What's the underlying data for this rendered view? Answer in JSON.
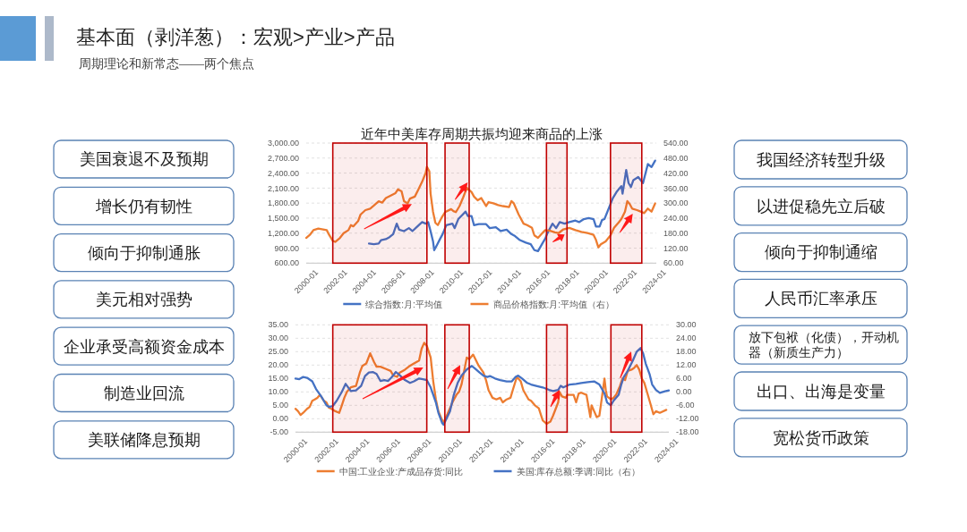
{
  "chart_data": [
    {
      "type": "other",
      "title": "基本面（剥洋葱）：宏观>产业>产品",
      "subtitle": "周期理论和新常态——两个焦点"
    },
    {
      "type": "other",
      "annotations": [
        "美国衰退不及预期",
        "增长仍有韧性",
        "倾向于抑制通胀",
        "美元相对强势",
        "企业承受高额资金成本",
        "制造业回流",
        "美联储降息预期"
      ]
    },
    {
      "type": "line",
      "title": "近年中美库存周期共振均迎来商品的上涨",
      "xlim": [
        "2000-01",
        "2024-03"
      ],
      "xticks": [
        "2000-01",
        "2002-01",
        "2004-01",
        "2006-01",
        "2008-01",
        "2010-01",
        "2012-01",
        "2014-01",
        "2016-01",
        "2018-01",
        "2020-01",
        "2022-01",
        "2024-01"
      ],
      "ylim": [
        600,
        3000
      ],
      "yticks": [
        {
          "value": 600,
          "label": "600.00"
        },
        {
          "value": 900,
          "label": "900.00"
        },
        {
          "value": 1200,
          "label": "1,200.00"
        },
        {
          "value": 1500,
          "label": "1,500.00"
        },
        {
          "value": 1800,
          "label": "1,800.00"
        },
        {
          "value": 2100,
          "label": "2,100.00"
        },
        {
          "value": 2400,
          "label": "2,400.00"
        },
        {
          "value": 2700,
          "label": "2,700.00"
        },
        {
          "value": 3000,
          "label": "3,000.00"
        }
      ],
      "y2lim": [
        60,
        540
      ],
      "y2ticks": [
        {
          "value": 60,
          "label": "60.00"
        },
        {
          "value": 120,
          "label": "120.00"
        },
        {
          "value": 180,
          "label": "180.00"
        },
        {
          "value": 240,
          "label": "240.00"
        },
        {
          "value": 300,
          "label": "300.00"
        },
        {
          "value": 360,
          "label": "360.00"
        },
        {
          "value": 420,
          "label": "420.00"
        },
        {
          "value": 480,
          "label": "480.00"
        },
        {
          "value": 540,
          "label": "540.00"
        }
      ],
      "grid": "y",
      "legend": "bottom",
      "bands": [
        {
          "axis": "x",
          "from": "2001-11",
          "to": "2008-05",
          "color": "#c00000"
        },
        {
          "axis": "x",
          "from": "2009-08",
          "to": "2011-04",
          "color": "#c00000"
        },
        {
          "axis": "x",
          "from": "2016-08",
          "to": "2018-01",
          "color": "#c00000"
        },
        {
          "axis": "x",
          "from": "2021-01",
          "to": "2023-03",
          "color": "#c00000"
        }
      ],
      "series": [
        {
          "name": "综合指数:月:平均值",
          "color": "#4472c4",
          "x": [
            "2004-05",
            "2004-09",
            "2005-01",
            "2005-03",
            "2005-07",
            "2005-10",
            "2006-01",
            "2006-04",
            "2006-06",
            "2006-10",
            "2007-02",
            "2007-05",
            "2007-09",
            "2008-01",
            "2008-04",
            "2008-06",
            "2008-08",
            "2008-10",
            "2008-11",
            "2009-01",
            "2009-04",
            "2009-06",
            "2009-09",
            "2010-02",
            "2010-04",
            "2010-07",
            "2011-01",
            "2011-03",
            "2011-06",
            "2011-08",
            "2011-12",
            "2012-06",
            "2012-09",
            "2013-02",
            "2013-06",
            "2013-11",
            "2014-03",
            "2014-06",
            "2014-10",
            "2015-03",
            "2015-07",
            "2015-10",
            "2016-01",
            "2016-05",
            "2016-07",
            "2016-09",
            "2017-01",
            "2017-04",
            "2017-07",
            "2017-11",
            "2018-03",
            "2018-08",
            "2018-11",
            "2019-03",
            "2019-07",
            "2019-11",
            "2020-01",
            "2020-04",
            "2020-06",
            "2020-08",
            "2020-11",
            "2021-03",
            "2021-06",
            "2021-10",
            "2021-11",
            "2022-02",
            "2022-04",
            "2022-06",
            "2022-08",
            "2022-12",
            "2023-04",
            "2023-08",
            "2023-11",
            "2024-02"
          ],
          "values": [
            990,
            980,
            990,
            1060,
            1080,
            1120,
            1180,
            1390,
            1270,
            1240,
            1300,
            1240,
            1330,
            1420,
            1390,
            1420,
            1240,
            1040,
            860,
            950,
            1090,
            1180,
            1360,
            1390,
            1300,
            1480,
            1630,
            1540,
            1540,
            1360,
            1380,
            1380,
            1300,
            1320,
            1240,
            1270,
            1180,
            1140,
            1060,
            1010,
            980,
            860,
            840,
            1010,
            1090,
            1210,
            1390,
            1300,
            1420,
            1390,
            1420,
            1450,
            1420,
            1480,
            1500,
            1480,
            1330,
            1330,
            1460,
            1480,
            1660,
            1900,
            2020,
            2140,
            1990,
            2460,
            2200,
            2120,
            2260,
            2320,
            2200,
            2580,
            2520,
            2650
          ]
        },
        {
          "name": "商品价格指数:月:平均值（右）",
          "color": "#ed7d31",
          "axis": "y2",
          "x": [
            "2000-01",
            "2000-04",
            "2000-07",
            "2000-11",
            "2001-03",
            "2001-06",
            "2001-08",
            "2001-11",
            "2002-01",
            "2002-05",
            "2002-08",
            "2002-12",
            "2003-02",
            "2003-04",
            "2003-08",
            "2003-10",
            "2004-02",
            "2004-06",
            "2004-09",
            "2005-01",
            "2005-04",
            "2005-07",
            "2005-11",
            "2006-03",
            "2006-05",
            "2006-08",
            "2006-10",
            "2007-01",
            "2007-03",
            "2007-07",
            "2007-10",
            "2008-01",
            "2008-04",
            "2008-05",
            "2008-07",
            "2008-08",
            "2008-10",
            "2008-12",
            "2009-02",
            "2009-05",
            "2009-08",
            "2010-01",
            "2010-03",
            "2010-05",
            "2010-08",
            "2010-11",
            "2011-02",
            "2011-06",
            "2011-08",
            "2011-11",
            "2012-02",
            "2012-06",
            "2012-08",
            "2012-12",
            "2013-04",
            "2013-08",
            "2014-01",
            "2014-03",
            "2014-05",
            "2014-09",
            "2015-01",
            "2015-04",
            "2015-08",
            "2015-10",
            "2016-01",
            "2016-04",
            "2016-07",
            "2016-11",
            "2017-03",
            "2017-06",
            "2017-10",
            "2018-03",
            "2018-08",
            "2019-01",
            "2019-06",
            "2019-11",
            "2020-01",
            "2020-03",
            "2020-05",
            "2020-09",
            "2021-01",
            "2021-04",
            "2021-08",
            "2021-10",
            "2022-01",
            "2022-03",
            "2022-05",
            "2022-07",
            "2022-11",
            "2023-02",
            "2023-05",
            "2023-08",
            "2023-11",
            "2024-02"
          ],
          "values": [
            161,
            173,
            192,
            198,
            195,
            192,
            173,
            149,
            145,
            161,
            180,
            192,
            212,
            207,
            228,
            254,
            272,
            278,
            290,
            307,
            302,
            320,
            330,
            340,
            355,
            347,
            308,
            299,
            318,
            326,
            355,
            385,
            421,
            445,
            427,
            338,
            266,
            221,
            212,
            240,
            264,
            276,
            268,
            264,
            288,
            323,
            361,
            344,
            326,
            311,
            320,
            288,
            304,
            299,
            292,
            288,
            284,
            308,
            299,
            254,
            218,
            212,
            201,
            171,
            161,
            177,
            192,
            189,
            183,
            180,
            195,
            201,
            192,
            185,
            180,
            173,
            153,
            123,
            135,
            147,
            171,
            201,
            224,
            236,
            266,
            308,
            296,
            278,
            272,
            266,
            260,
            278,
            266,
            299
          ]
        }
      ]
    },
    {
      "type": "line",
      "xlim": [
        "2000-01",
        "2024-03"
      ],
      "xticks": [
        "2000-01",
        "2002-01",
        "2004-01",
        "2006-01",
        "2008-01",
        "2010-01",
        "2012-01",
        "2014-01",
        "2016-01",
        "2018-01",
        "2020-01",
        "2022-01",
        "2024-01"
      ],
      "ylim": [
        -5,
        35
      ],
      "yticks": [
        {
          "value": -5,
          "label": "-5.00"
        },
        {
          "value": 0,
          "label": "0.00"
        },
        {
          "value": 5,
          "label": "5.00"
        },
        {
          "value": 10,
          "label": "10.00"
        },
        {
          "value": 15,
          "label": "15.00"
        },
        {
          "value": 20,
          "label": "20.00"
        },
        {
          "value": 25,
          "label": "25.00"
        },
        {
          "value": 30,
          "label": "30.00"
        },
        {
          "value": 35,
          "label": "35.00"
        }
      ],
      "y2lim": [
        -18,
        30
      ],
      "y2ticks": [
        {
          "value": -18,
          "label": "-18.00"
        },
        {
          "value": -12,
          "label": "-12.00"
        },
        {
          "value": -6,
          "label": "-6.00"
        },
        {
          "value": 0,
          "label": "0.00"
        },
        {
          "value": 6,
          "label": "6.00"
        },
        {
          "value": 12,
          "label": "12.00"
        },
        {
          "value": 18,
          "label": "18.00"
        },
        {
          "value": 24,
          "label": "24.00"
        },
        {
          "value": 30,
          "label": "30.00"
        }
      ],
      "grid": "y",
      "legend": "bottom",
      "bands": [
        {
          "axis": "x",
          "from": "2002-06",
          "to": "2008-07",
          "color": "#c00000"
        },
        {
          "axis": "x",
          "from": "2009-09",
          "to": "2011-04",
          "color": "#c00000"
        },
        {
          "axis": "x",
          "from": "2016-04",
          "to": "2017-08",
          "color": "#c00000"
        },
        {
          "axis": "x",
          "from": "2020-06",
          "to": "2022-06",
          "color": "#c00000"
        }
      ],
      "series": [
        {
          "name": "中国:工业企业:产成品存货:同比",
          "color": "#ed7d31",
          "x": [
            "2000-01",
            "2000-03",
            "2000-05",
            "2000-07",
            "2000-10",
            "2000-12",
            "2001-02",
            "2001-04",
            "2001-06",
            "2001-08",
            "2001-11",
            "2002-01",
            "2002-03",
            "2002-05",
            "2002-08",
            "2002-11",
            "2003-01",
            "2003-03",
            "2003-05",
            "2003-08",
            "2003-12",
            "2004-03",
            "2004-05",
            "2004-08",
            "2004-11",
            "2005-02",
            "2005-04",
            "2005-07",
            "2005-11",
            "2006-03",
            "2006-05",
            "2006-08",
            "2006-10",
            "2007-02",
            "2007-05",
            "2007-09",
            "2008-01",
            "2008-03",
            "2008-05",
            "2008-07",
            "2008-10",
            "2008-12",
            "2009-02",
            "2009-04",
            "2009-07",
            "2009-08",
            "2009-11",
            "2010-03",
            "2010-06",
            "2010-08",
            "2010-10",
            "2011-02",
            "2011-04",
            "2011-07",
            "2011-11",
            "2012-03",
            "2012-05",
            "2012-07",
            "2012-10",
            "2013-01",
            "2013-04",
            "2013-06",
            "2013-09",
            "2013-12",
            "2014-02",
            "2014-05",
            "2014-08",
            "2014-10",
            "2015-02",
            "2015-04",
            "2015-07",
            "2015-10",
            "2016-01",
            "2016-04",
            "2016-07",
            "2016-09",
            "2017-01",
            "2017-02",
            "2017-04",
            "2017-07",
            "2017-08",
            "2018-01",
            "2018-03",
            "2018-05",
            "2018-07",
            "2018-11",
            "2019-02",
            "2019-03",
            "2019-05",
            "2019-07",
            "2019-09",
            "2019-10",
            "2020-01",
            "2020-02",
            "2020-03",
            "2020-06",
            "2020-08",
            "2020-10",
            "2021-01",
            "2021-03",
            "2021-05",
            "2021-07",
            "2021-10",
            "2021-12",
            "2022-02",
            "2022-04",
            "2022-06",
            "2022-08",
            "2022-10",
            "2023-01",
            "2023-03",
            "2023-05",
            "2023-08",
            "2024-01"
          ],
          "values": [
            3.7,
            2.8,
            1.4,
            2.2,
            3.7,
            4.4,
            6.7,
            7.2,
            7.8,
            8.9,
            6.7,
            6.1,
            4.1,
            3.7,
            2.8,
            2.2,
            5.0,
            7.8,
            10.0,
            11.7,
            12.2,
            17.2,
            19.7,
            20.6,
            24.4,
            21.1,
            19.4,
            19.4,
            18.6,
            17.8,
            16.1,
            15.6,
            17.2,
            18.3,
            19.4,
            20.6,
            21.7,
            26.1,
            28.3,
            27.2,
            22.8,
            13.9,
            7.2,
            2.8,
            -0.6,
            -1.4,
            1.7,
            6.1,
            8.9,
            10.0,
            12.8,
            22.8,
            22.2,
            23.9,
            20.0,
            17.2,
            14.4,
            10.6,
            7.8,
            7.2,
            7.8,
            6.1,
            7.2,
            7.8,
            11.1,
            15.6,
            13.9,
            10.6,
            7.2,
            6.7,
            5.0,
            3.9,
            -0.6,
            -1.9,
            -1.1,
            1.1,
            6.1,
            10.0,
            8.3,
            7.8,
            8.9,
            8.9,
            6.1,
            9.4,
            9.7,
            8.9,
            0.6,
            5.0,
            2.8,
            0.6,
            1.1,
            4.4,
            15.0,
            10.6,
            8.3,
            7.2,
            7.8,
            8.9,
            12.2,
            15.0,
            14.4,
            17.8,
            18.3,
            18.9,
            20.0,
            18.3,
            15.0,
            13.3,
            10.0,
            5.0,
            1.7,
            2.8,
            2.2,
            3.3
          ]
        },
        {
          "name": "美国:库存总额:季调:同比（右）",
          "color": "#4472c4",
          "axis": "y2",
          "x": [
            "2000-01",
            "2000-04",
            "2000-07",
            "2000-10",
            "2001-02",
            "2001-05",
            "2001-09",
            "2002-01",
            "2002-03",
            "2002-06",
            "2002-09",
            "2003-01",
            "2003-04",
            "2003-06",
            "2003-08",
            "2003-12",
            "2004-04",
            "2004-07",
            "2004-10",
            "2005-01",
            "2005-04",
            "2005-07",
            "2005-10",
            "2006-01",
            "2006-04",
            "2006-07",
            "2006-09",
            "2007-02",
            "2007-06",
            "2007-09",
            "2008-01",
            "2008-04",
            "2008-07",
            "2008-10",
            "2009-02",
            "2009-04",
            "2009-07",
            "2009-08",
            "2010-01",
            "2010-04",
            "2010-07",
            "2010-10",
            "2011-02",
            "2011-06",
            "2011-08",
            "2011-12",
            "2012-03",
            "2012-06",
            "2012-08",
            "2012-12",
            "2013-04",
            "2013-09",
            "2014-01",
            "2014-04",
            "2014-06",
            "2014-09",
            "2015-01",
            "2015-04",
            "2015-08",
            "2016-01",
            "2016-06",
            "2016-09",
            "2017-01",
            "2017-03",
            "2017-05",
            "2017-10",
            "2018-03",
            "2018-07",
            "2018-12",
            "2019-05",
            "2019-09",
            "2020-01",
            "2020-03",
            "2020-06",
            "2020-08",
            "2020-12",
            "2021-02",
            "2021-04",
            "2021-07",
            "2021-11",
            "2022-02",
            "2022-05",
            "2022-07",
            "2022-09",
            "2022-12",
            "2023-02",
            "2023-05",
            "2023-08",
            "2023-12",
            "2024-03"
          ],
          "values": [
            6.0,
            5.7,
            6.7,
            6.3,
            4.7,
            1.3,
            -2.0,
            -6.0,
            -6.7,
            -6.3,
            -4.0,
            0.0,
            3.6,
            2.0,
            0.4,
            0.7,
            2.7,
            7.1,
            8.7,
            8.9,
            8.0,
            4.9,
            5.3,
            4.9,
            6.7,
            8.9,
            8.0,
            5.3,
            4.0,
            4.7,
            6.0,
            5.7,
            5.3,
            2.0,
            -4.7,
            -9.3,
            -14.0,
            -14.7,
            -8.7,
            -1.3,
            4.0,
            7.3,
            10.0,
            11.6,
            10.7,
            8.7,
            7.3,
            6.7,
            7.1,
            6.0,
            5.3,
            4.7,
            4.7,
            6.7,
            7.3,
            6.0,
            4.0,
            3.3,
            2.7,
            2.0,
            0.9,
            0.4,
            0.9,
            2.7,
            2.0,
            3.3,
            3.6,
            4.0,
            4.4,
            4.7,
            3.3,
            -0.7,
            -4.7,
            -6.0,
            -4.0,
            -1.3,
            3.3,
            6.7,
            9.3,
            14.0,
            18.0,
            19.6,
            17.3,
            12.7,
            8.0,
            3.3,
            0.9,
            -0.4,
            0.3,
            0.7
          ]
        }
      ]
    },
    {
      "type": "other",
      "annotations": [
        "我国经济转型升级",
        "以进促稳先立后破",
        "倾向于抑制通缩",
        "人民币汇率承压",
        "放下包袱（化债），开动机器（新质生产力）",
        "出口、出海是变量",
        "宽松货币政策"
      ]
    }
  ]
}
